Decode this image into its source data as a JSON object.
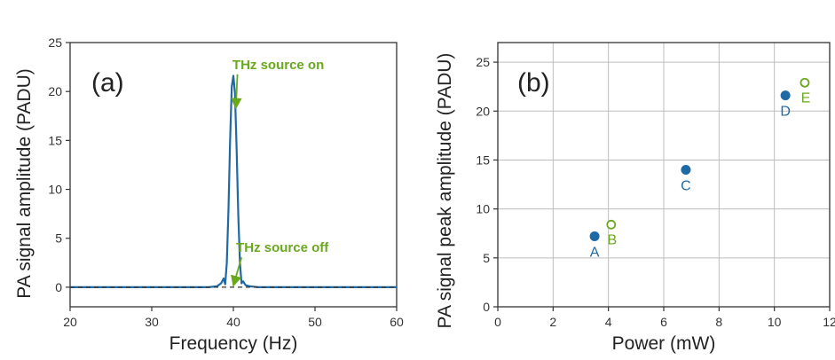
{
  "colors": {
    "blue": "#1f6aa5",
    "green": "#6aa81e",
    "axis": "#333333",
    "grid": "#bdbdbd"
  },
  "chart_data": [
    {
      "type": "line",
      "panel_label": "(a)",
      "xlabel": "Frequency (Hz)",
      "ylabel": "PA signal amplitude (PADU)",
      "xlim": [
        20,
        60
      ],
      "ylim": [
        -2,
        25
      ],
      "xticks": [
        20,
        30,
        40,
        50,
        60
      ],
      "yticks": [
        0,
        5,
        10,
        15,
        20,
        25
      ],
      "grid": false,
      "series": [
        {
          "style": "solid",
          "color": "#1f6aa5",
          "x": [
            20,
            30,
            37,
            38,
            38.5,
            38.8,
            39.0,
            39.2,
            39.4,
            39.6,
            39.8,
            40.0,
            40.2,
            40.4,
            40.6,
            40.8,
            41.0,
            41.2,
            41.5,
            42,
            43,
            50,
            60
          ],
          "y": [
            0,
            0,
            0,
            0.1,
            0.4,
            0.9,
            0.3,
            2.5,
            8.0,
            15.0,
            20.5,
            21.6,
            19.8,
            14.0,
            7.5,
            2.5,
            0.4,
            0.6,
            0.2,
            0.1,
            0,
            0,
            0
          ]
        },
        {
          "style": "dashed",
          "color": "#333333",
          "x": [
            20,
            60
          ],
          "y": [
            0,
            0
          ]
        }
      ],
      "annotations": [
        {
          "text": "THz source on",
          "x": 45.5,
          "y": 22.3,
          "arrow_to": [
            40.3,
            18.3
          ]
        },
        {
          "text": "THz source off",
          "x": 46,
          "y": 3.6,
          "arrow_to": [
            40.0,
            0.15
          ]
        }
      ]
    },
    {
      "type": "scatter",
      "panel_label": "(b)",
      "xlabel": "Power (mW)",
      "ylabel": "PA signal peak amplitude (PADU)",
      "xlim": [
        0,
        12
      ],
      "ylim": [
        0,
        27
      ],
      "xticks": [
        0,
        2,
        4,
        6,
        8,
        10,
        12
      ],
      "yticks": [
        0,
        5,
        10,
        15,
        20,
        25
      ],
      "grid": true,
      "points": [
        {
          "label": "A",
          "x": 3.5,
          "y": 7.2,
          "filled": true,
          "color": "#1f6aa5",
          "label_pos": "below"
        },
        {
          "label": "B",
          "x": 4.1,
          "y": 8.4,
          "filled": false,
          "color": "#6aa81e",
          "label_pos": "below"
        },
        {
          "label": "C",
          "x": 6.8,
          "y": 14.0,
          "filled": true,
          "color": "#1f6aa5",
          "label_pos": "below"
        },
        {
          "label": "D",
          "x": 10.4,
          "y": 21.6,
          "filled": true,
          "color": "#1f6aa5",
          "label_pos": "below"
        },
        {
          "label": "E",
          "x": 11.1,
          "y": 22.9,
          "filled": false,
          "color": "#6aa81e",
          "label_pos": "below"
        }
      ]
    }
  ]
}
